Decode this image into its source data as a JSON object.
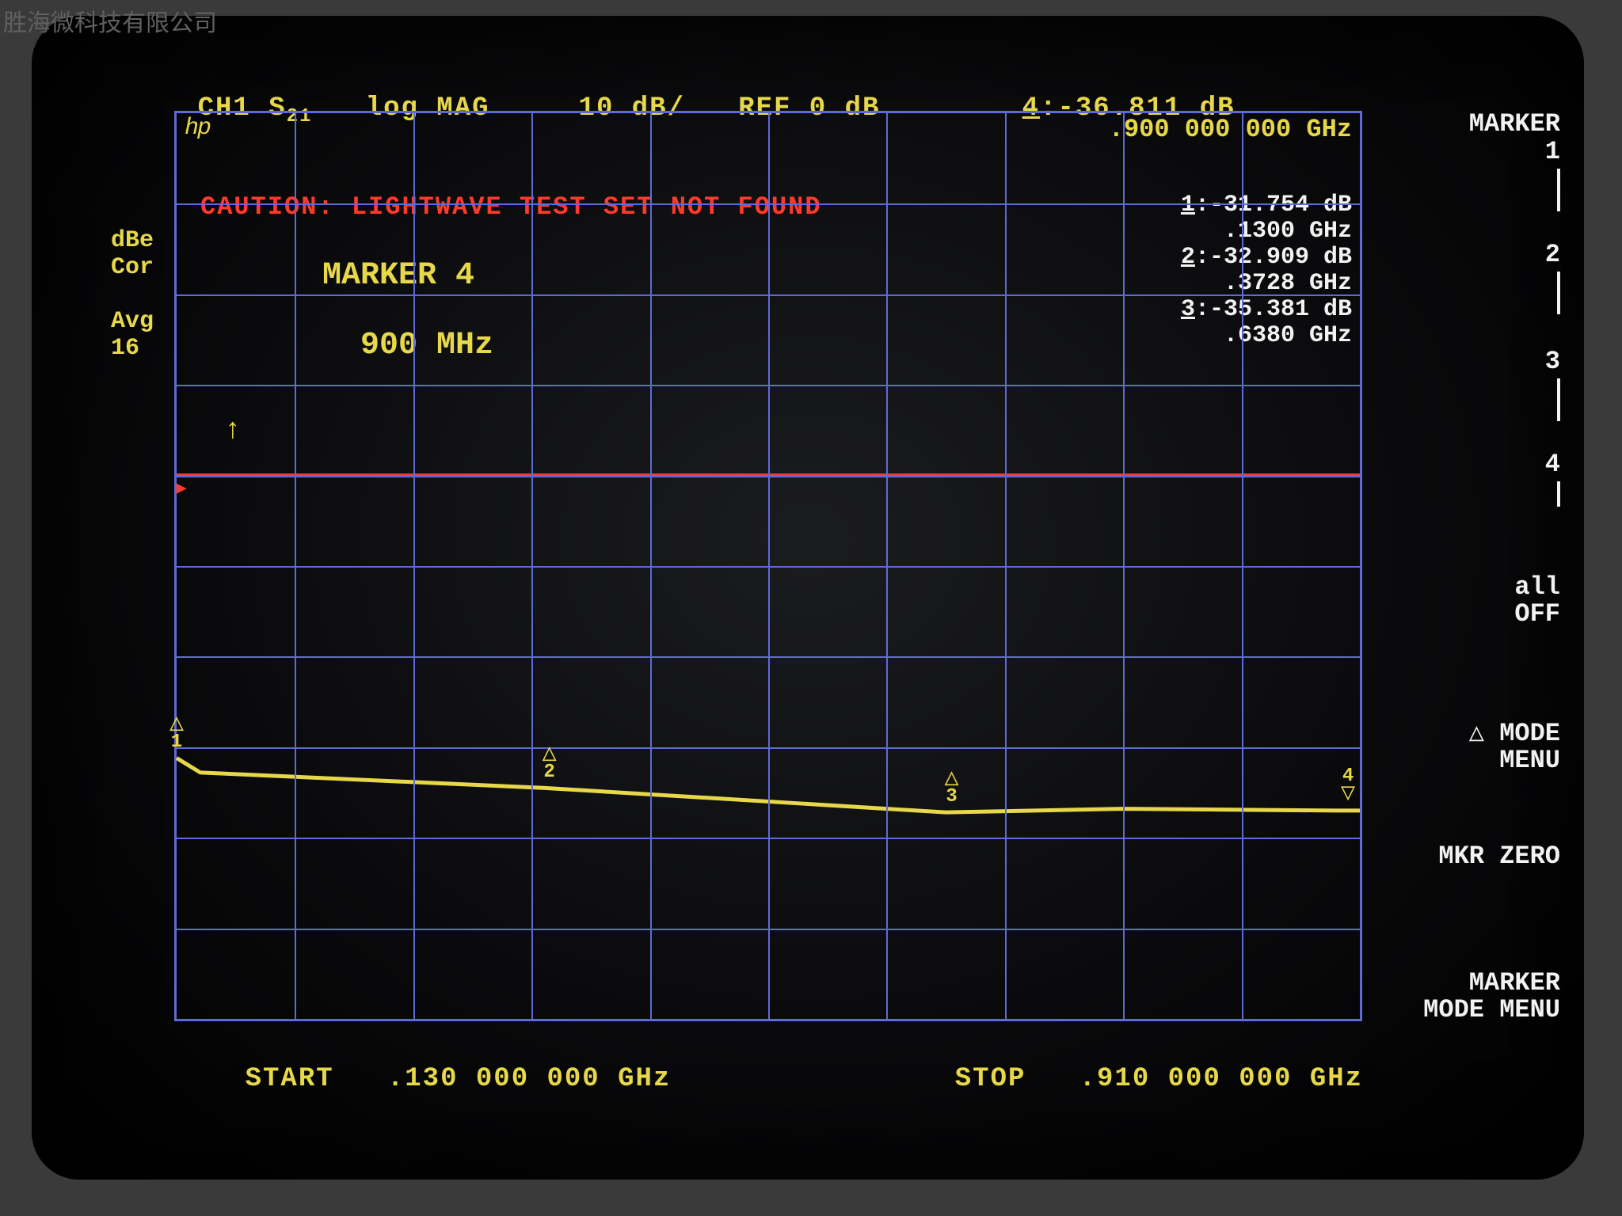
{
  "watermark": "胜海微科技有限公司",
  "header": {
    "channel": "CH1",
    "parameter": "S",
    "parameter_sub": "21",
    "format": "log MAG",
    "scale": "10 dB/",
    "ref": "REF 0 dB",
    "active_marker_num": "4",
    "active_marker_val": ":-36.811 dB"
  },
  "logo": "hp",
  "active_freq_readout": ".900 000 000 GHz",
  "caution": "CAUTION: LIGHTWAVE TEST SET NOT FOUND",
  "side_labels": {
    "dbe": "dBe",
    "cor": "Cor",
    "avg": "Avg",
    "avg_n": "16"
  },
  "active_marker": {
    "title": "MARKER 4",
    "freq": "  900 MHz"
  },
  "marker_table": [
    {
      "n": "1",
      "val": "-31.754 dB",
      "freq": ".1300 GHz"
    },
    {
      "n": "2",
      "val": "-32.909 dB",
      "freq": ".3728 GHz"
    },
    {
      "n": "3",
      "val": "-35.381 dB",
      "freq": ".6380 GHz"
    }
  ],
  "footer": {
    "start_label": "START",
    "start_val": ".130 000 000 GHz",
    "stop_label": "STOP",
    "stop_val": ".910 000 000 GHz"
  },
  "softkeys": {
    "title": "MARKER",
    "k1": "1",
    "k2": "2",
    "k3": "3",
    "k4": "4",
    "all_off": "all\nOFF",
    "mode_menu": "△ MODE\nMENU",
    "mkr_zero": "MKR ZERO",
    "marker_mode_menu": "MARKER\nMODE MENU"
  },
  "chart": {
    "grid_rows": 10,
    "grid_cols": 10,
    "ref_line_row": 4,
    "colors": {
      "grid": "#5e6bd6",
      "trace": "#e7d84a",
      "ref": "#ff3a2a",
      "text_primary": "#e7d84a",
      "text_secondary": "#f2f2f2",
      "background": "#0a0a0c"
    },
    "trace_points": [
      {
        "x": 0.0,
        "y": 0.712
      },
      {
        "x": 0.02,
        "y": 0.728
      },
      {
        "x": 0.31,
        "y": 0.745
      },
      {
        "x": 0.5,
        "y": 0.76
      },
      {
        "x": 0.65,
        "y": 0.772
      },
      {
        "x": 0.8,
        "y": 0.768
      },
      {
        "x": 0.98,
        "y": 0.77
      },
      {
        "x": 1.0,
        "y": 0.77
      }
    ],
    "markers": [
      {
        "n": "1",
        "x": 0.0,
        "y": 0.712,
        "dir": "up"
      },
      {
        "n": "2",
        "x": 0.315,
        "y": 0.745,
        "dir": "up"
      },
      {
        "n": "3",
        "x": 0.655,
        "y": 0.772,
        "dir": "up"
      },
      {
        "n": "4",
        "x": 0.99,
        "y": 0.77,
        "dir": "down"
      }
    ]
  }
}
